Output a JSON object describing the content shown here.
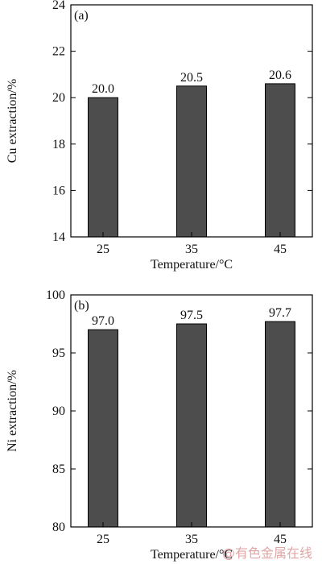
{
  "chart_data": [
    {
      "type": "bar",
      "panel_label": "(a)",
      "categories": [
        "25",
        "35",
        "45"
      ],
      "values": [
        20.0,
        20.5,
        20.6
      ],
      "data_labels": [
        "20.0",
        "20.5",
        "20.6"
      ],
      "xlabel": "Temperature/°C",
      "ylabel": "Cu extraction/%",
      "ylim": [
        14,
        24
      ],
      "yticks": [
        "14",
        "16",
        "18",
        "20",
        "22",
        "24"
      ],
      "bar_color": "#4d4d4d",
      "grid": false
    },
    {
      "type": "bar",
      "panel_label": "(b)",
      "categories": [
        "25",
        "35",
        "45"
      ],
      "values": [
        97.0,
        97.5,
        97.7
      ],
      "data_labels": [
        "97.0",
        "97.5",
        "97.7"
      ],
      "xlabel": "Temperature/°C",
      "ylabel": "Ni extraction/%",
      "ylim": [
        80,
        100
      ],
      "yticks": [
        "80",
        "85",
        "90",
        "95",
        "100"
      ],
      "bar_color": "#4d4d4d",
      "grid": false
    }
  ],
  "watermark": "@有色金属在线"
}
